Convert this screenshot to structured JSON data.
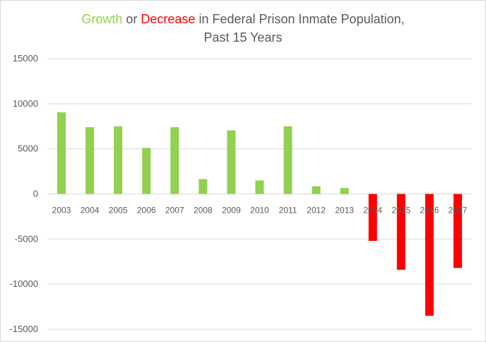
{
  "chart_data": {
    "type": "bar",
    "title": {
      "part1": "Growth",
      "part2": " or ",
      "part3": "Decrease",
      "part4": " in Federal Prison Inmate Population,",
      "line2": "Past 15 Years"
    },
    "xlabel": "",
    "ylabel": "",
    "categories": [
      "2003",
      "2004",
      "2005",
      "2006",
      "2007",
      "2008",
      "2009",
      "2010",
      "2011",
      "2012",
      "2013",
      "2014",
      "2015",
      "2016",
      "2017"
    ],
    "values": [
      9050,
      7400,
      7500,
      5100,
      7400,
      1650,
      7050,
      1500,
      7500,
      850,
      650,
      -5200,
      -8400,
      -13500,
      -8200
    ],
    "ylim": [
      -15000,
      15000
    ],
    "yticks": [
      15000,
      10000,
      5000,
      0,
      -5000,
      -10000,
      -15000
    ],
    "grid": true,
    "legend": "none"
  },
  "colors": {
    "growth": "#92d050",
    "decrease": "#ff0000",
    "grid": "#d9d9d9",
    "text": "#595959"
  }
}
